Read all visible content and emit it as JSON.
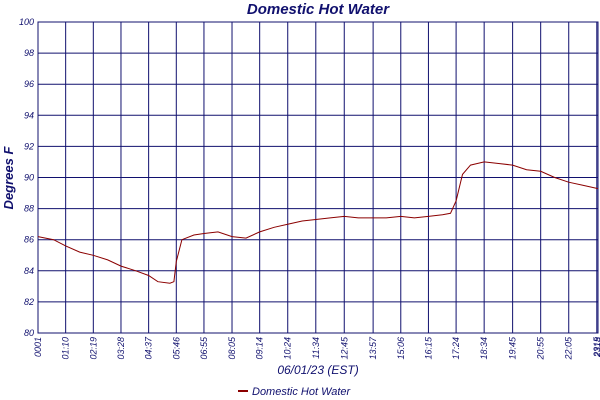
{
  "chart_data": {
    "type": "line",
    "title": "Domestic Hot Water",
    "xlabel": "06/01/23 (EST)",
    "ylabel": "Degrees F",
    "ylim": [
      80,
      100
    ],
    "yticks": [
      80,
      82,
      84,
      86,
      88,
      90,
      92,
      94,
      96,
      98,
      100
    ],
    "ytick_labels": [
      "80",
      "82",
      "84",
      "86",
      "88",
      "90",
      "92",
      "94",
      "96",
      "98",
      "100"
    ],
    "xticks": [
      "00:01",
      "01:10",
      "02:19",
      "03:28",
      "04:37",
      "05:46",
      "06:55",
      "08:05",
      "09:14",
      "10:24",
      "11:34",
      "12:45",
      "13:57",
      "15:06",
      "16:15",
      "17:24",
      "18:34",
      "19:45",
      "20:55",
      "22:05",
      "23:15",
      "23:18"
    ],
    "xtick_labels": [
      "0001",
      "01:10",
      "02:19",
      "03:28",
      "04:37",
      "05:46",
      "06:55",
      "08:05",
      "09:14",
      "10:24",
      "11:34",
      "12:45",
      "13:57",
      "15:06",
      "16:15",
      "17:24",
      "18:34",
      "19:45",
      "20:55",
      "22:05",
      "2315",
      "2318"
    ],
    "grid": true,
    "legend_position": "bottom-center",
    "series": [
      {
        "name": "Domestic Hot Water",
        "color": "#8b0000",
        "x": [
          "00:01",
          "00:40",
          "01:10",
          "01:45",
          "02:19",
          "02:55",
          "03:28",
          "04:05",
          "04:37",
          "05:00",
          "05:30",
          "05:40",
          "05:46",
          "06:00",
          "06:30",
          "06:55",
          "07:30",
          "08:05",
          "08:40",
          "09:14",
          "09:50",
          "10:24",
          "11:00",
          "11:34",
          "12:10",
          "12:45",
          "13:20",
          "13:57",
          "14:30",
          "15:06",
          "15:40",
          "16:15",
          "16:50",
          "17:10",
          "17:24",
          "17:40",
          "18:00",
          "18:34",
          "19:10",
          "19:45",
          "20:20",
          "20:55",
          "21:30",
          "22:05",
          "22:40",
          "23:15",
          "23:18"
        ],
        "y": [
          86.2,
          86.0,
          85.6,
          85.2,
          85.0,
          84.7,
          84.3,
          84.0,
          83.7,
          83.3,
          83.2,
          83.3,
          84.6,
          86.0,
          86.3,
          86.4,
          86.5,
          86.2,
          86.1,
          86.5,
          86.8,
          87.0,
          87.2,
          87.3,
          87.4,
          87.5,
          87.4,
          87.4,
          87.4,
          87.5,
          87.4,
          87.5,
          87.6,
          87.7,
          88.5,
          90.2,
          90.8,
          91.0,
          90.9,
          90.8,
          90.5,
          90.4,
          90.0,
          89.7,
          89.5,
          89.3,
          89.3
        ]
      }
    ]
  }
}
